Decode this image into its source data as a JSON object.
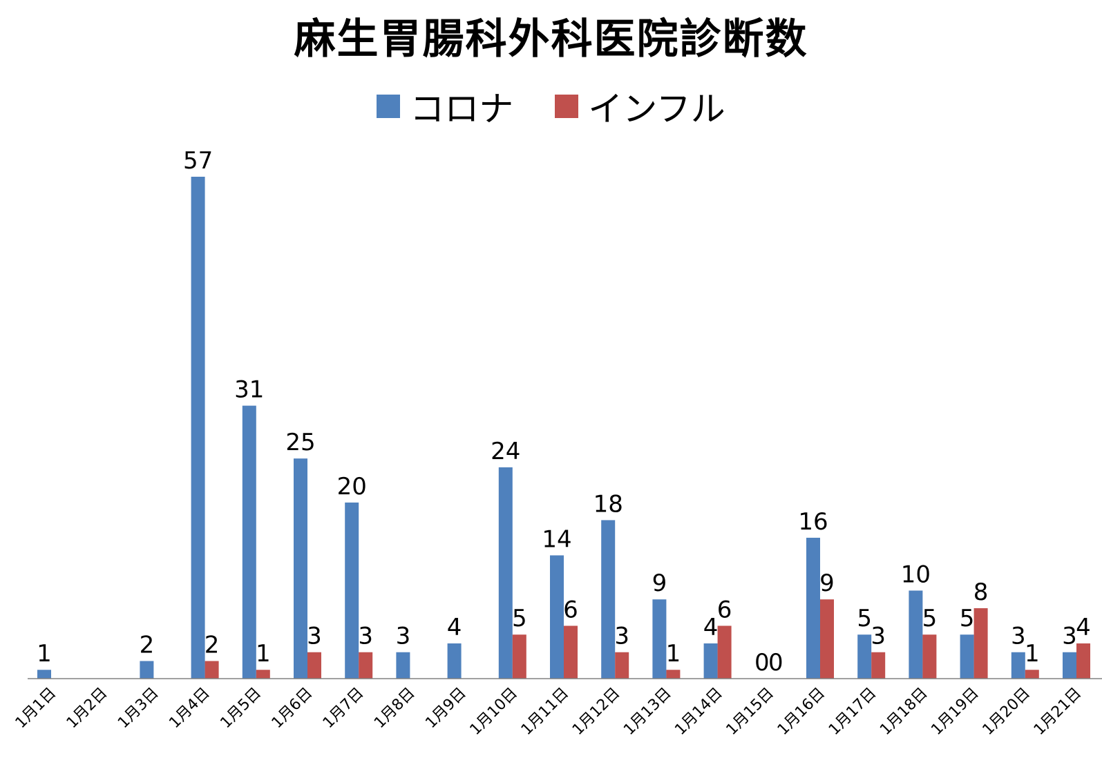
{
  "chart_data": {
    "type": "bar",
    "title": "麻生胃腸科外科医院診断数",
    "categories": [
      "1月1日",
      "1月2日",
      "1月3日",
      "1月4日",
      "1月5日",
      "1月6日",
      "1月7日",
      "1月8日",
      "1月9日",
      "1月10日",
      "1月11日",
      "1月12日",
      "1月13日",
      "1月14日",
      "1月15日",
      "1月16日",
      "1月17日",
      "1月18日",
      "1月19日",
      "1月20日",
      "1月21日"
    ],
    "series": [
      {
        "name": "コロナ",
        "color": "#4F81BD",
        "values": [
          1,
          null,
          2,
          57,
          31,
          25,
          20,
          3,
          4,
          24,
          14,
          18,
          9,
          4,
          0,
          16,
          5,
          10,
          5,
          3,
          3
        ]
      },
      {
        "name": "インフル",
        "color": "#C0504D",
        "values": [
          null,
          null,
          null,
          2,
          1,
          3,
          3,
          null,
          null,
          5,
          6,
          3,
          1,
          6,
          0,
          9,
          3,
          5,
          8,
          1,
          4
        ]
      }
    ],
    "ylim": [
      0,
      62
    ],
    "xlabel": "",
    "ylabel": "",
    "grid": false,
    "legend_position": "top"
  }
}
